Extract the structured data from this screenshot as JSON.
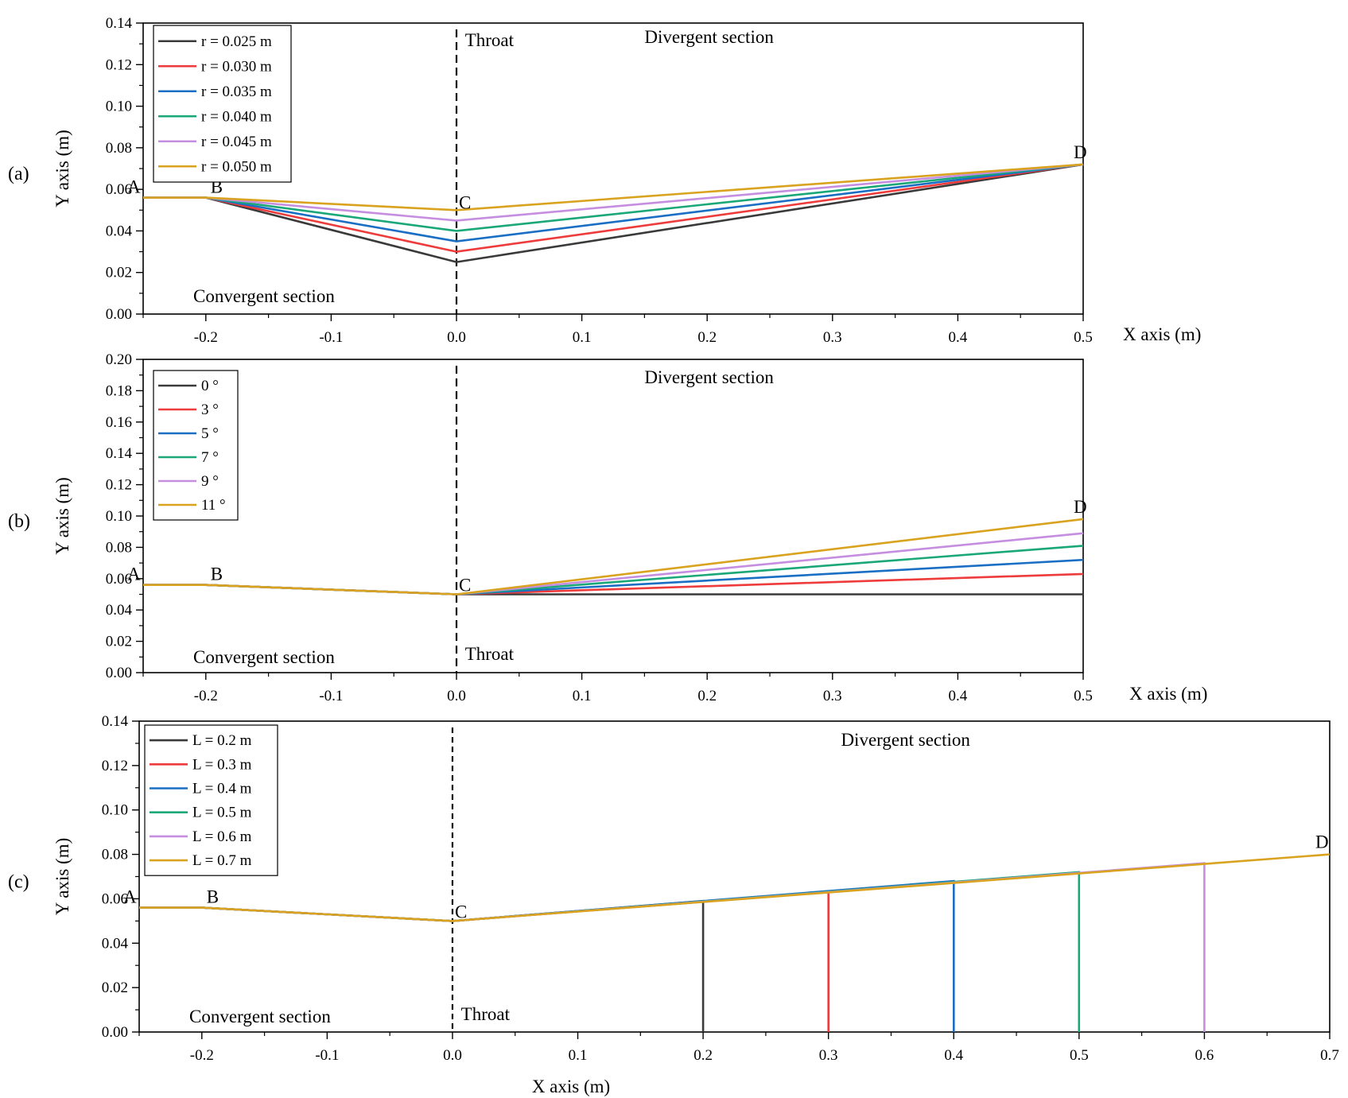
{
  "colors": {
    "black": "#3a3a3a",
    "red": "#ee3b3b",
    "blue": "#1a6fc4",
    "green": "#1aa878",
    "purple": "#c58ee0",
    "gold": "#d9a320"
  },
  "chart_data": [
    {
      "type": "line",
      "panel_label": "(a)",
      "xlabel": "X axis (m)",
      "ylabel": "Y axis (m)",
      "xlim": [
        -0.25,
        0.5
      ],
      "ylim": [
        0.0,
        0.14
      ],
      "xticks": [
        "-0.2",
        "-0.1",
        "0.0",
        "0.1",
        "0.2",
        "0.3",
        "0.4",
        "0.5"
      ],
      "yticks": [
        "0.00",
        "0.02",
        "0.04",
        "0.06",
        "0.08",
        "0.10",
        "0.12",
        "0.14"
      ],
      "throat_x": 0.0,
      "annotations": {
        "A": "A",
        "B": "B",
        "C": "C",
        "D": "D",
        "throat": "Throat",
        "divergent": "Divergent section",
        "convergent": "Convergent section"
      },
      "series": [
        {
          "name": "r = 0.025 m",
          "color": "black",
          "x": [
            -0.25,
            -0.2,
            0.0,
            0.5
          ],
          "y": [
            0.056,
            0.056,
            0.025,
            0.072
          ]
        },
        {
          "name": "r = 0.030 m",
          "color": "red",
          "x": [
            -0.25,
            -0.2,
            0.0,
            0.5
          ],
          "y": [
            0.056,
            0.056,
            0.03,
            0.072
          ]
        },
        {
          "name": "r = 0.035 m",
          "color": "blue",
          "x": [
            -0.25,
            -0.2,
            0.0,
            0.5
          ],
          "y": [
            0.056,
            0.056,
            0.035,
            0.072
          ]
        },
        {
          "name": "r = 0.040 m",
          "color": "green",
          "x": [
            -0.25,
            -0.2,
            0.0,
            0.5
          ],
          "y": [
            0.056,
            0.056,
            0.04,
            0.072
          ]
        },
        {
          "name": "r = 0.045 m",
          "color": "purple",
          "x": [
            -0.25,
            -0.2,
            0.0,
            0.5
          ],
          "y": [
            0.056,
            0.056,
            0.045,
            0.072
          ]
        },
        {
          "name": "r = 0.050 m",
          "color": "gold",
          "x": [
            -0.25,
            -0.2,
            0.0,
            0.5
          ],
          "y": [
            0.056,
            0.056,
            0.05,
            0.072
          ]
        }
      ]
    },
    {
      "type": "line",
      "panel_label": "(b)",
      "xlabel": "X axis (m)",
      "ylabel": "Y axis (m)",
      "xlim": [
        -0.25,
        0.5
      ],
      "ylim": [
        0.0,
        0.2
      ],
      "xticks": [
        "-0.2",
        "-0.1",
        "0.0",
        "0.1",
        "0.2",
        "0.3",
        "0.4",
        "0.5"
      ],
      "yticks": [
        "0.00",
        "0.02",
        "0.04",
        "0.06",
        "0.08",
        "0.10",
        "0.12",
        "0.14",
        "0.16",
        "0.18",
        "0.20"
      ],
      "throat_x": 0.0,
      "annotations": {
        "A": "A",
        "B": "B",
        "C": "C",
        "D": "D",
        "throat": "Throat",
        "divergent": "Divergent section",
        "convergent": "Convergent section"
      },
      "series": [
        {
          "name": "0 °",
          "color": "black",
          "x": [
            -0.25,
            -0.2,
            0.0,
            0.5
          ],
          "y": [
            0.056,
            0.056,
            0.05,
            0.05
          ]
        },
        {
          "name": "3 °",
          "color": "red",
          "x": [
            -0.25,
            -0.2,
            0.0,
            0.5
          ],
          "y": [
            0.056,
            0.056,
            0.05,
            0.063
          ]
        },
        {
          "name": "5 °",
          "color": "blue",
          "x": [
            -0.25,
            -0.2,
            0.0,
            0.5
          ],
          "y": [
            0.056,
            0.056,
            0.05,
            0.072
          ]
        },
        {
          "name": "7 °",
          "color": "green",
          "x": [
            -0.25,
            -0.2,
            0.0,
            0.5
          ],
          "y": [
            0.056,
            0.056,
            0.05,
            0.081
          ]
        },
        {
          "name": "9 °",
          "color": "purple",
          "x": [
            -0.25,
            -0.2,
            0.0,
            0.5
          ],
          "y": [
            0.056,
            0.056,
            0.05,
            0.089
          ]
        },
        {
          "name": "11 °",
          "color": "gold",
          "x": [
            -0.25,
            -0.2,
            0.0,
            0.5
          ],
          "y": [
            0.056,
            0.056,
            0.05,
            0.098
          ]
        }
      ]
    },
    {
      "type": "line",
      "panel_label": "(c)",
      "xlabel": "X axis (m)",
      "ylabel": "Y axis (m)",
      "xlim": [
        -0.25,
        0.7
      ],
      "ylim": [
        0.0,
        0.14
      ],
      "xticks": [
        "-0.2",
        "-0.1",
        "0.0",
        "0.1",
        "0.2",
        "0.3",
        "0.4",
        "0.5",
        "0.6",
        "0.7"
      ],
      "yticks": [
        "0.00",
        "0.02",
        "0.04",
        "0.06",
        "0.08",
        "0.10",
        "0.12",
        "0.14"
      ],
      "throat_x": 0.0,
      "annotations": {
        "A": "A",
        "B": "B",
        "C": "C",
        "D": "D",
        "throat": "Throat",
        "divergent": "Divergent section",
        "convergent": "Convergent section"
      },
      "series": [
        {
          "name": "L = 0.2 m",
          "color": "black",
          "x": [
            -0.25,
            -0.2,
            0.0,
            0.2,
            0.2
          ],
          "y": [
            0.056,
            0.056,
            0.05,
            0.059,
            0.0
          ]
        },
        {
          "name": "L = 0.3 m",
          "color": "red",
          "x": [
            -0.25,
            -0.2,
            0.0,
            0.3,
            0.3
          ],
          "y": [
            0.056,
            0.056,
            0.05,
            0.063,
            0.0
          ]
        },
        {
          "name": "L = 0.4 m",
          "color": "blue",
          "x": [
            -0.25,
            -0.2,
            0.0,
            0.4,
            0.4
          ],
          "y": [
            0.056,
            0.056,
            0.05,
            0.068,
            0.0
          ]
        },
        {
          "name": "L = 0.5 m",
          "color": "green",
          "x": [
            -0.25,
            -0.2,
            0.0,
            0.5,
            0.5
          ],
          "y": [
            0.056,
            0.056,
            0.05,
            0.072,
            0.0
          ]
        },
        {
          "name": "L = 0.6 m",
          "color": "purple",
          "x": [
            -0.25,
            -0.2,
            0.0,
            0.6,
            0.6
          ],
          "y": [
            0.056,
            0.056,
            0.05,
            0.076,
            0.0
          ]
        },
        {
          "name": "L = 0.7 m",
          "color": "gold",
          "x": [
            -0.25,
            -0.2,
            0.0,
            0.7
          ],
          "y": [
            0.056,
            0.056,
            0.05,
            0.08
          ]
        }
      ]
    }
  ]
}
